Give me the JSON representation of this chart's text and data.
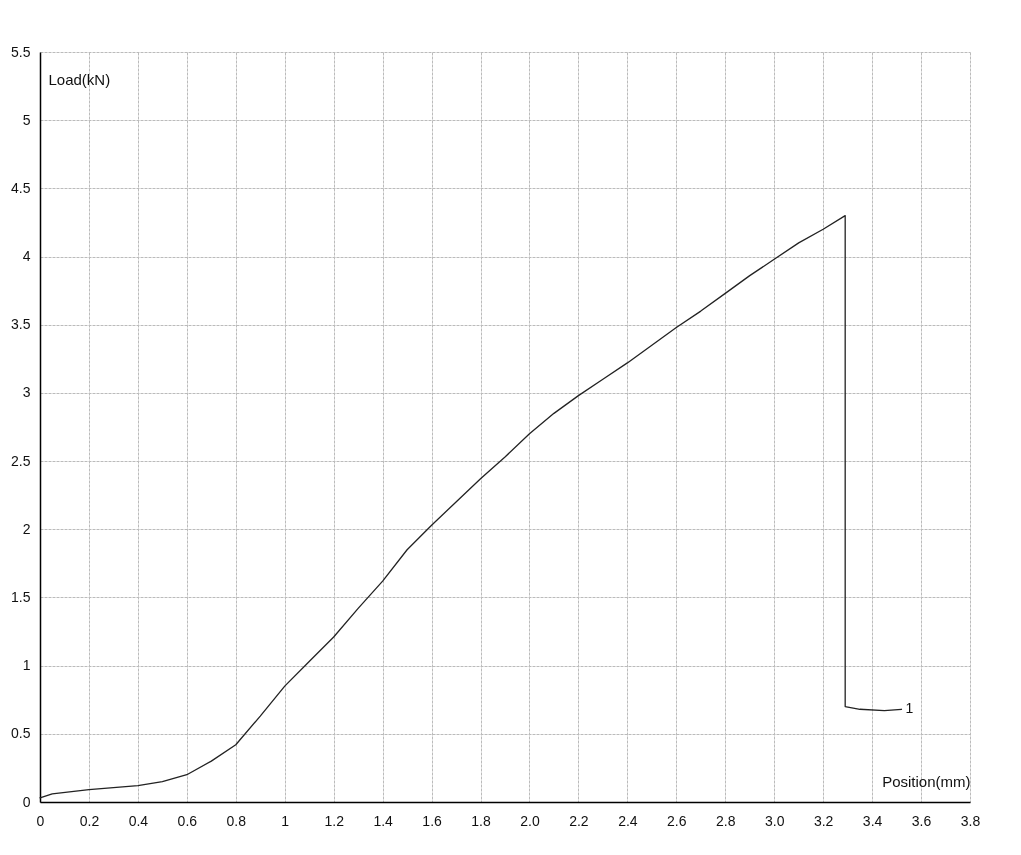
{
  "chart_data": {
    "type": "line",
    "xlabel": "Position(mm)",
    "ylabel": "Load(kN)",
    "xlim": [
      0,
      3.8
    ],
    "ylim": [
      0,
      5.5
    ],
    "xticks": [
      0,
      0.2,
      0.4,
      0.6,
      0.8,
      {
        "value": 1,
        "label": "1"
      },
      1.2,
      1.4,
      1.6,
      1.8,
      {
        "value": 2,
        "label": "2.0"
      },
      2.2,
      2.4,
      2.6,
      2.8,
      {
        "value": 3,
        "label": "3.0"
      },
      3.2,
      3.4,
      3.6,
      3.8
    ],
    "yticks": [
      0,
      0.5,
      1,
      1.5,
      2,
      2.5,
      3,
      3.5,
      4,
      4.5,
      5,
      5.5
    ],
    "grid": true,
    "marker": "none",
    "line_style": "solid",
    "series": [
      {
        "name": "1",
        "color": "#222222",
        "x": [
          0,
          0.05,
          0.2,
          0.4,
          0.5,
          0.6,
          0.7,
          0.8,
          0.9,
          1.0,
          1.1,
          1.2,
          1.3,
          1.4,
          1.5,
          1.6,
          1.7,
          1.8,
          1.9,
          2.0,
          2.1,
          2.2,
          2.3,
          2.4,
          2.5,
          2.6,
          2.7,
          2.8,
          2.9,
          3.0,
          3.1,
          3.2,
          3.29,
          3.29,
          3.35,
          3.45,
          3.52
        ],
        "values": [
          0.03,
          0.06,
          0.09,
          0.12,
          0.15,
          0.2,
          0.3,
          0.42,
          0.63,
          0.85,
          1.03,
          1.21,
          1.42,
          1.62,
          1.85,
          2.03,
          2.2,
          2.37,
          2.53,
          2.7,
          2.85,
          2.98,
          3.1,
          3.22,
          3.35,
          3.48,
          3.6,
          3.73,
          3.86,
          3.98,
          4.1,
          4.2,
          4.3,
          0.7,
          0.68,
          0.67,
          0.68
        ]
      }
    ]
  }
}
